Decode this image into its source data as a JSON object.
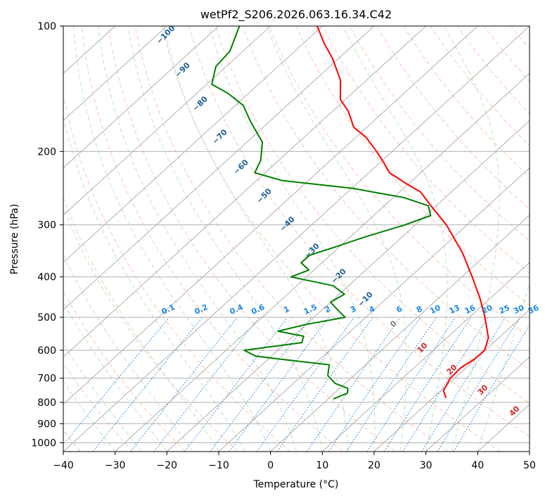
{
  "chart_data": {
    "type": "skewt",
    "title": "wetPf2_S206.2026.063.16.34.C42",
    "xlabel": "Temperature (°C)",
    "ylabel": "Pressure (hPa)",
    "xlim": [
      -40,
      50
    ],
    "ylim": [
      1050,
      100
    ],
    "x_ticks": [
      -40,
      -30,
      -20,
      -10,
      0,
      10,
      20,
      30,
      40,
      50
    ],
    "x_tick_labels": [
      "−40",
      "−30",
      "−20",
      "−10",
      "0",
      "10",
      "20",
      "30",
      "40",
      "50"
    ],
    "y_ticks": [
      100,
      200,
      300,
      400,
      500,
      600,
      700,
      800,
      900,
      1000
    ],
    "y_tick_labels": [
      "100",
      "200",
      "300",
      "400",
      "500",
      "600",
      "700",
      "800",
      "900",
      "1000"
    ],
    "series": [
      {
        "name": "Temperature",
        "color": "#ff0000",
        "points": [
          {
            "p": 780,
            "t": 22.5
          },
          {
            "p": 750,
            "t": 20.5
          },
          {
            "p": 700,
            "t": 19.2
          },
          {
            "p": 660,
            "t": 19.0
          },
          {
            "p": 630,
            "t": 19.8
          },
          {
            "p": 600,
            "t": 19.9
          },
          {
            "p": 560,
            "t": 18.0
          },
          {
            "p": 500,
            "t": 13.0
          },
          {
            "p": 450,
            "t": 8.0
          },
          {
            "p": 400,
            "t": 2.0
          },
          {
            "p": 350,
            "t": -5.0
          },
          {
            "p": 300,
            "t": -14.0
          },
          {
            "p": 270,
            "t": -21.0
          },
          {
            "p": 250,
            "t": -26.0
          },
          {
            "p": 240,
            "t": -30.0
          },
          {
            "p": 225,
            "t": -36.0
          },
          {
            "p": 210,
            "t": -40.0
          },
          {
            "p": 200,
            "t": -43.0
          },
          {
            "p": 185,
            "t": -48.0
          },
          {
            "p": 175,
            "t": -52.5
          },
          {
            "p": 160,
            "t": -57.0
          },
          {
            "p": 150,
            "t": -61.0
          },
          {
            "p": 135,
            "t": -65.0
          },
          {
            "p": 120,
            "t": -71.0
          },
          {
            "p": 110,
            "t": -76.0
          },
          {
            "p": 100,
            "t": -81.0
          }
        ]
      },
      {
        "name": "Dewpoint",
        "color": "#008000",
        "points": [
          {
            "p": 785,
            "t": 1.0
          },
          {
            "p": 760,
            "t": 2.5
          },
          {
            "p": 740,
            "t": 1.5
          },
          {
            "p": 720,
            "t": -2.0
          },
          {
            "p": 690,
            "t": -5.0
          },
          {
            "p": 670,
            "t": -6.0
          },
          {
            "p": 650,
            "t": -7.0
          },
          {
            "p": 635,
            "t": -15.0
          },
          {
            "p": 620,
            "t": -23.0
          },
          {
            "p": 600,
            "t": -26.5
          },
          {
            "p": 575,
            "t": -17.0
          },
          {
            "p": 555,
            "t": -18.0
          },
          {
            "p": 540,
            "t": -24.0
          },
          {
            "p": 520,
            "t": -20.0
          },
          {
            "p": 500,
            "t": -14.0
          },
          {
            "p": 480,
            "t": -17.0
          },
          {
            "p": 460,
            "t": -20.0
          },
          {
            "p": 440,
            "t": -19.0
          },
          {
            "p": 420,
            "t": -23.0
          },
          {
            "p": 400,
            "t": -33.0
          },
          {
            "p": 385,
            "t": -31.0
          },
          {
            "p": 370,
            "t": -34.0
          },
          {
            "p": 355,
            "t": -34.0
          },
          {
            "p": 340,
            "t": -31.0
          },
          {
            "p": 320,
            "t": -27.0
          },
          {
            "p": 300,
            "t": -22.0
          },
          {
            "p": 285,
            "t": -19.0
          },
          {
            "p": 270,
            "t": -21.5
          },
          {
            "p": 258,
            "t": -28.0
          },
          {
            "p": 245,
            "t": -40.0
          },
          {
            "p": 235,
            "t": -55.0
          },
          {
            "p": 225,
            "t": -62.0
          },
          {
            "p": 210,
            "t": -63.5
          },
          {
            "p": 190,
            "t": -67.0
          },
          {
            "p": 170,
            "t": -73.5
          },
          {
            "p": 155,
            "t": -78.5
          },
          {
            "p": 145,
            "t": -84.0
          },
          {
            "p": 138,
            "t": -89.0
          },
          {
            "p": 125,
            "t": -92.0
          },
          {
            "p": 115,
            "t": -92.5
          },
          {
            "p": 100,
            "t": -96.0
          }
        ]
      }
    ],
    "dry_adiabats": {
      "color": "#ff7f50",
      "style": "dashed",
      "labels": [
        "−100",
        "−90",
        "−80",
        "−70",
        "−60",
        "−50",
        "−40",
        "−30",
        "−20",
        "−10",
        "0",
        "10",
        "20",
        "30",
        "40"
      ]
    },
    "moist_adiabats": {
      "color": "#2ca02c",
      "style": "dashed"
    },
    "mixing_ratio_lines": {
      "color": "#1e88e5",
      "style": "dotted",
      "labels": [
        "0.1",
        "0.2",
        "0.4",
        "0.6",
        "1",
        "1.5",
        "2",
        "3",
        "4",
        "6",
        "8",
        "10",
        "13",
        "16",
        "20",
        "25",
        "30",
        "36"
      ]
    },
    "isotherms": {
      "color": "#808080",
      "style": "solid"
    }
  }
}
